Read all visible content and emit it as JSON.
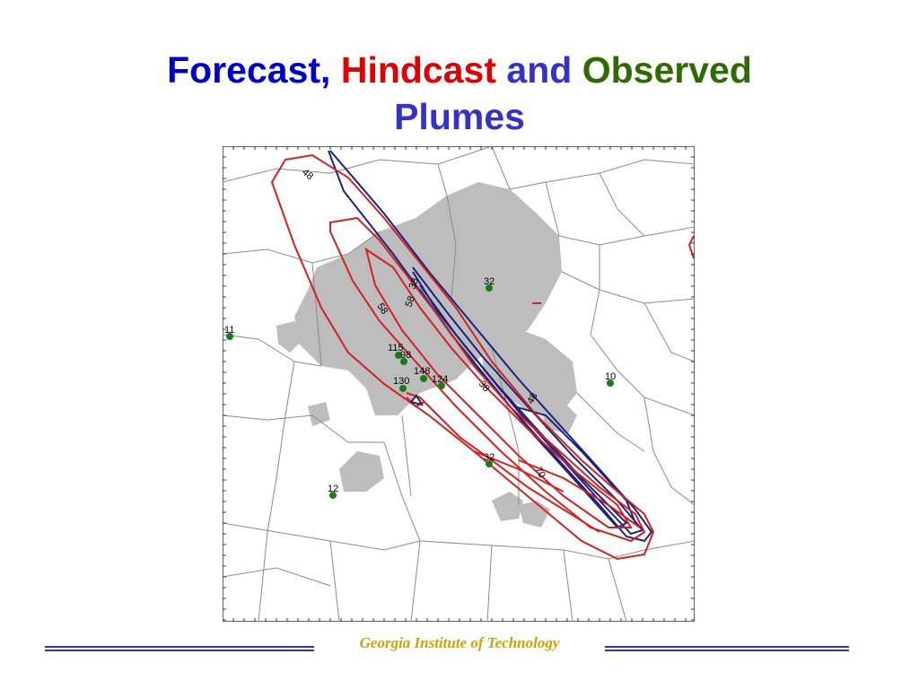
{
  "title": {
    "line1": [
      {
        "text": "Forecast,",
        "color": "#0000cc"
      },
      {
        "text": "Hindcast",
        "color": "#e00000"
      },
      {
        "text": "and",
        "color": "#3333cc"
      },
      {
        "text": "Observed",
        "color": "#2e6b00"
      }
    ],
    "line2": {
      "text": "Plumes",
      "color": "#3333cc"
    }
  },
  "map": {
    "stations": [
      {
        "label": "32",
        "color": "#1a7a1a"
      },
      {
        "label": "11",
        "color": "#1a7a1a"
      },
      {
        "label": "115",
        "color": "#1a7a1a"
      },
      {
        "label": "98",
        "color": "#1a7a1a"
      },
      {
        "label": "148",
        "color": "#1a7a1a"
      },
      {
        "label": "124",
        "color": "#1a7a1a"
      },
      {
        "label": "130",
        "color": "#1a7a1a"
      },
      {
        "label": "10",
        "color": "#1a7a1a"
      },
      {
        "label": "32",
        "color": "#1a7a1a"
      },
      {
        "label": "12",
        "color": "#1a7a1a"
      }
    ],
    "contour_labels": [
      {
        "text": "48"
      },
      {
        "text": "58"
      },
      {
        "text": "58"
      },
      {
        "text": "38"
      },
      {
        "text": "38"
      },
      {
        "text": "48"
      },
      {
        "text": "70"
      }
    ],
    "colors": {
      "forecast": "#1a237e",
      "hindcast": "#d62020",
      "urban": "#bdbdbd",
      "county": "#8a8a8a"
    }
  },
  "footer": {
    "text": "Georgia Institute of Technology"
  }
}
